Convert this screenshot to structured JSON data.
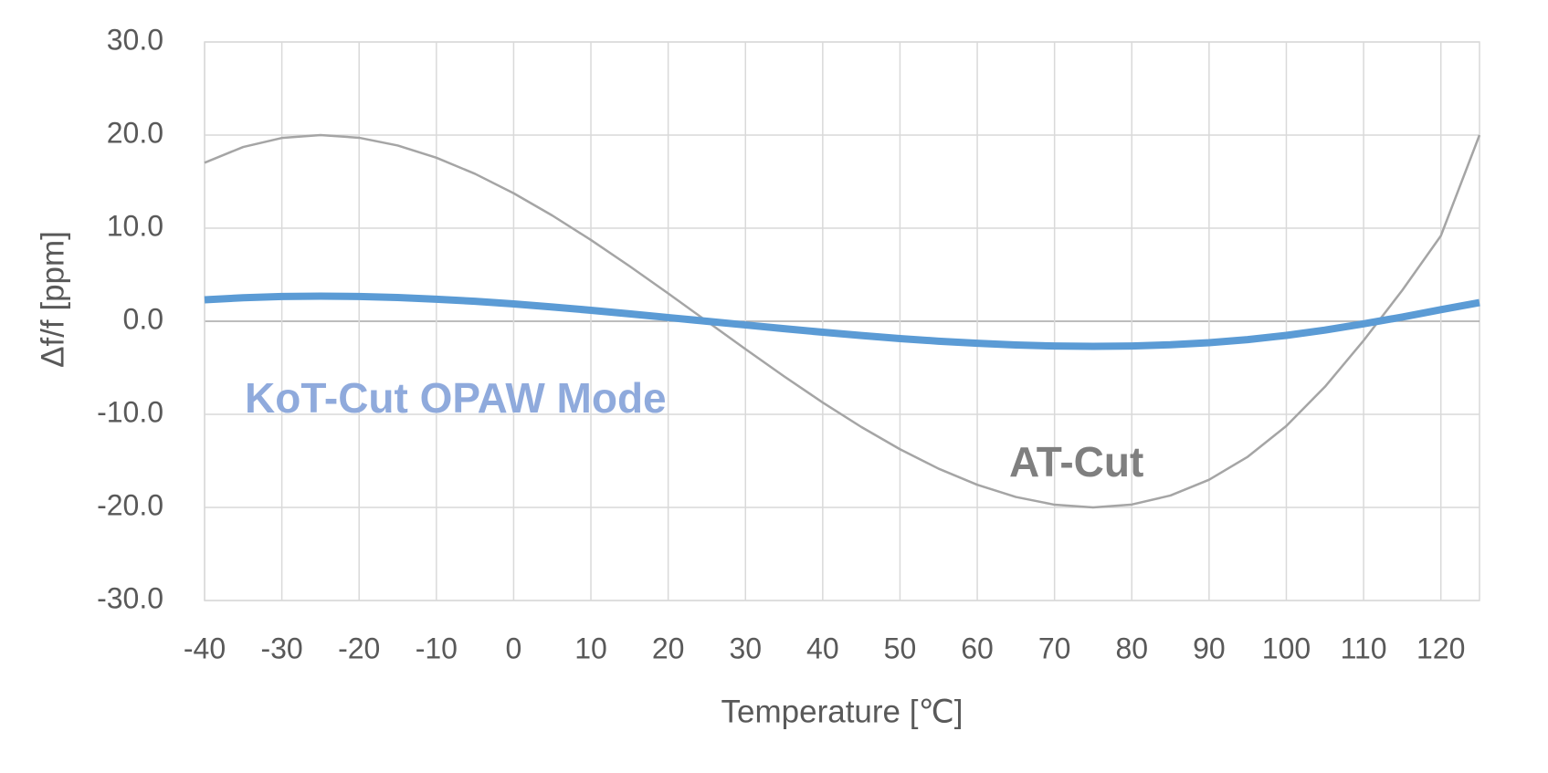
{
  "chart_data": {
    "type": "line",
    "xlabel": "Temperature [℃]",
    "ylabel": "Δf/f [ppm]",
    "x": [
      -40,
      -35,
      -30,
      -25,
      -20,
      -15,
      -10,
      -5,
      0,
      5,
      10,
      15,
      20,
      25,
      30,
      35,
      40,
      45,
      50,
      55,
      60,
      65,
      70,
      75,
      80,
      85,
      90,
      95,
      100,
      105,
      110,
      115,
      120,
      125
    ],
    "series": [
      {
        "name": "KoT-Cut OPAW Mode",
        "color": "#5b9bd5",
        "values": [
          2.3,
          2.53,
          2.66,
          2.7,
          2.66,
          2.55,
          2.37,
          2.14,
          1.86,
          1.53,
          1.18,
          0.8,
          0.4,
          0,
          -0.4,
          -0.8,
          -1.18,
          -1.53,
          -1.86,
          -2.14,
          -2.37,
          -2.55,
          -2.66,
          -2.7,
          -2.66,
          -2.53,
          -2.3,
          -1.97,
          -1.52,
          -0.95,
          -0.28,
          0.45,
          1.24,
          2.0
        ]
      },
      {
        "name": "AT-Cut",
        "color": "#a5a5a5",
        "values": [
          17.03,
          18.72,
          19.69,
          20,
          19.71,
          18.88,
          17.57,
          15.84,
          13.75,
          11.36,
          8.73,
          5.92,
          2.99,
          0,
          -2.99,
          -5.92,
          -8.73,
          -11.36,
          -13.75,
          -15.84,
          -17.57,
          -18.88,
          -19.71,
          -20,
          -19.69,
          -18.72,
          -17.03,
          -14.56,
          -11.25,
          -7.04,
          -2.07,
          3.32,
          9.18,
          20
        ]
      }
    ],
    "xlim": [
      -40,
      125
    ],
    "xticks": [
      -40,
      -30,
      -20,
      -10,
      0,
      10,
      20,
      30,
      40,
      50,
      60,
      70,
      80,
      90,
      100,
      110,
      120
    ],
    "ylim": [
      -30,
      30
    ],
    "yticks": [
      {
        "value": -30,
        "label": "-30.0"
      },
      {
        "value": -20,
        "label": "-20.0"
      },
      {
        "value": -10,
        "label": "-10.0"
      },
      {
        "value": 0,
        "label": "0.0"
      },
      {
        "value": 10,
        "label": "10.0"
      },
      {
        "value": 20,
        "label": "20.0"
      },
      {
        "value": 30,
        "label": "30.0"
      }
    ],
    "grid": true
  }
}
